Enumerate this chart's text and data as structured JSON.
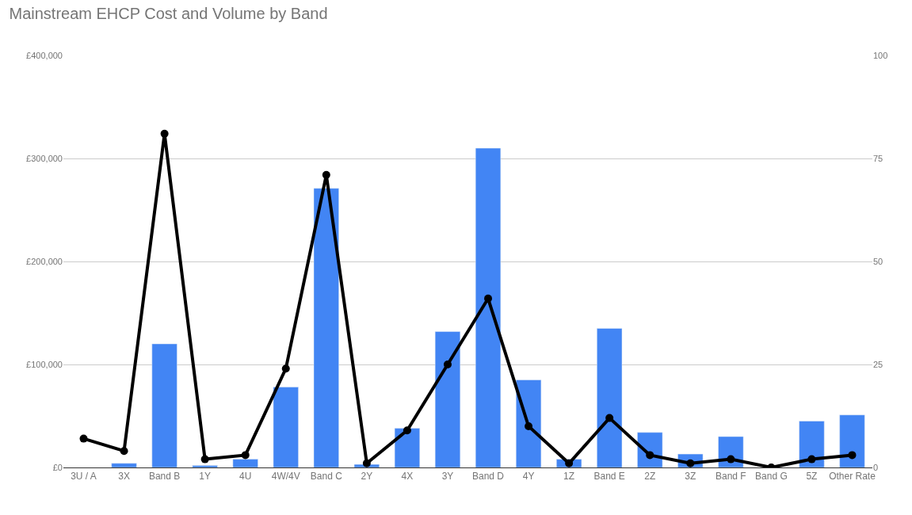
{
  "chart_data": {
    "type": "bar",
    "title": "Mainstream EHCP Cost and Volume by Band",
    "categories": [
      "3U / A",
      "3X",
      "Band B",
      "1Y",
      "4U",
      "4W/4V",
      "Band C",
      "2Y",
      "4X",
      "3Y",
      "Band D",
      "4Y",
      "1Z",
      "Band E",
      "2Z",
      "3Z",
      "Band F",
      "Band G",
      "5Z",
      "Other Rate"
    ],
    "series": [
      {
        "color": "#4285f4",
        "values": [
          null,
          4000,
          120000,
          2000,
          8000,
          78000,
          271000,
          3000,
          38000,
          132000,
          310000,
          85000,
          8000,
          135000,
          34000,
          13000,
          30000,
          null,
          45000,
          51000
        ]
      },
      {
        "type": "line",
        "axis": "y2",
        "color": "#000000",
        "marker": "circle",
        "values": [
          7,
          4,
          81,
          2,
          3,
          24,
          71,
          1,
          9,
          25,
          41,
          10,
          1,
          12,
          3,
          1,
          2,
          0,
          2,
          3
        ]
      }
    ],
    "ylim": [
      0,
      400000
    ],
    "yticks": [
      {
        "value": 0,
        "label": "£0"
      },
      {
        "value": 100000,
        "label": "£100,000"
      },
      {
        "value": 200000,
        "label": "£200,000"
      },
      {
        "value": 300000,
        "label": "£300,000"
      },
      {
        "value": 400000,
        "label": "£400,000"
      }
    ],
    "y2lim": [
      0,
      100
    ],
    "y2ticks": [
      0,
      25,
      50,
      75,
      100
    ],
    "grid": "y"
  }
}
